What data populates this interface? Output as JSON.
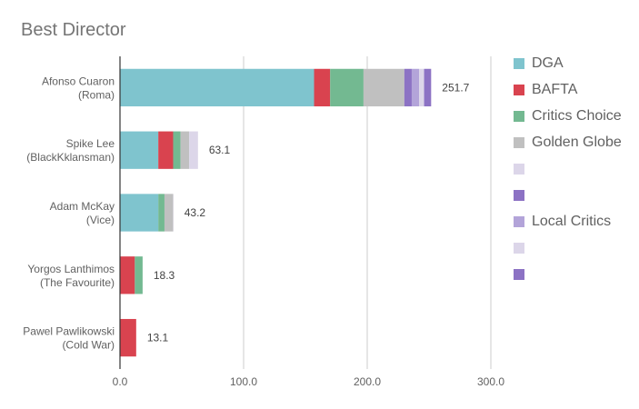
{
  "chart_data": {
    "type": "bar",
    "orientation": "horizontal",
    "stacked": true,
    "title": "Best Director",
    "xlabel": "",
    "ylabel": "",
    "xlim": [
      0,
      300
    ],
    "x_ticks": [
      "0.0",
      "100.0",
      "200.0",
      "300.0"
    ],
    "grid": true,
    "legend_position": "right",
    "categories": [
      [
        "Afonso Cuaron",
        "(Roma)"
      ],
      [
        "Spike Lee",
        "(BlackKklansman)"
      ],
      [
        "Adam McKay",
        "(Vice)"
      ],
      [
        "Yorgos Lanthimos",
        "(The Favourite)"
      ],
      [
        "Pawel Pawlikowski",
        "(Cold War)"
      ]
    ],
    "totals": [
      "251.7",
      "63.1",
      "43.2",
      "18.3",
      "13.1"
    ],
    "series": [
      {
        "name": "DGA",
        "color": "#7fc4ce",
        "values": [
          157,
          31,
          31,
          0,
          0
        ]
      },
      {
        "name": "BAFTA",
        "color": "#d9434f",
        "values": [
          13,
          12,
          0,
          12,
          13.1
        ]
      },
      {
        "name": "Critics Choice",
        "color": "#73b991",
        "values": [
          27,
          6,
          5,
          6.3,
          0
        ]
      },
      {
        "name": "Golden Globe",
        "color": "#c0c0c0",
        "values": [
          33,
          7,
          7,
          0,
          0
        ]
      },
      {
        "name": "",
        "color": "#dcd6e9",
        "values": [
          0,
          0,
          0,
          0,
          0
        ]
      },
      {
        "name": "",
        "color": "#8c72c4",
        "values": [
          6,
          0,
          0,
          0,
          0
        ]
      },
      {
        "name": "Local Critics",
        "color": "#b3a4d9",
        "values": [
          6,
          0,
          0,
          0,
          0
        ]
      },
      {
        "name": "",
        "color": "#dcd6e9",
        "values": [
          4,
          7.1,
          0.2,
          0,
          0
        ]
      },
      {
        "name": "",
        "color": "#8c72c4",
        "values": [
          5.7,
          0,
          0,
          0,
          0
        ]
      }
    ]
  }
}
